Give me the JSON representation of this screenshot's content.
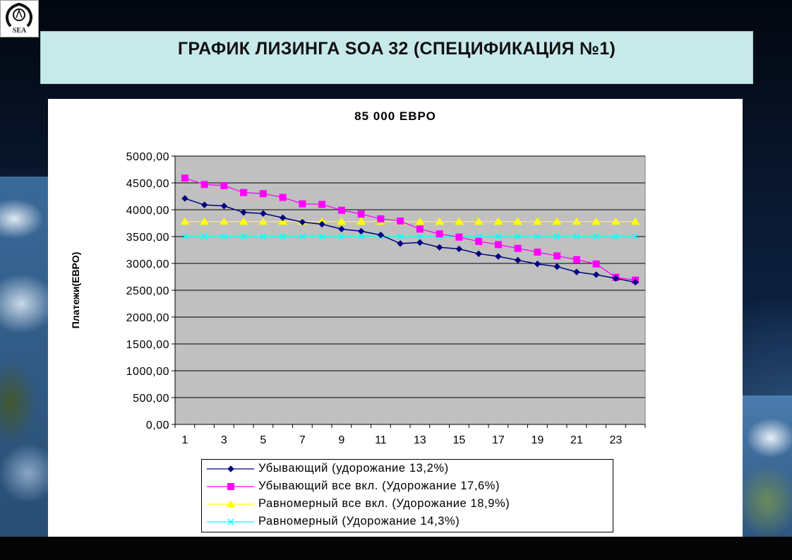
{
  "header": {
    "title": "ГРАФИК ЛИЗИНГА SOA 32 (СПЕЦИФИКАЦИЯ №1)",
    "logo_text": "SEA"
  },
  "colors": {
    "header_bg": "#c8e9e9",
    "plot_bg": "#c0c0c0",
    "series": [
      "#000080",
      "#ff00ff",
      "#ffff00",
      "#00ffff"
    ]
  },
  "chart_data": {
    "type": "line",
    "title": "85 000 ЕВРО",
    "xlabel": "",
    "ylabel": "Платежи(ЕВРО)",
    "ylim": [
      0,
      5000
    ],
    "yticks": [
      "5000,00",
      "4500,00",
      "4000,00",
      "3500,00",
      "3000,00",
      "2500,00",
      "2000,00",
      "1500,00",
      "1000,00",
      "500,00",
      "0,00"
    ],
    "xticks": [
      "1",
      "3",
      "5",
      "7",
      "9",
      "11",
      "13",
      "15",
      "17",
      "19",
      "21",
      "23"
    ],
    "x": [
      1,
      2,
      3,
      4,
      5,
      6,
      7,
      8,
      9,
      10,
      11,
      12,
      13,
      14,
      15,
      16,
      17,
      18,
      19,
      20,
      21,
      22,
      23,
      24
    ],
    "grid": true,
    "legend_position": "bottom",
    "series": [
      {
        "name": "Убывающий (удорожание 13,2%)",
        "marker": "diamond",
        "values": [
          4210,
          4090,
          4070,
          3950,
          3930,
          3850,
          3770,
          3730,
          3640,
          3600,
          3530,
          3370,
          3390,
          3300,
          3270,
          3180,
          3130,
          3060,
          2990,
          2940,
          2840,
          2790,
          2720,
          2650
        ]
      },
      {
        "name": "Убывающий все вкл. (Удорожание 17,6%)",
        "marker": "square",
        "values": [
          4590,
          4470,
          4450,
          4320,
          4300,
          4230,
          4110,
          4100,
          3990,
          3920,
          3830,
          3790,
          3640,
          3550,
          3490,
          3410,
          3350,
          3280,
          3210,
          3140,
          3070,
          2990,
          2740,
          2690
        ]
      },
      {
        "name": "Равномерный все вкл. (Удорожание 18,9%)",
        "marker": "triangle",
        "values": [
          3780,
          3780,
          3780,
          3780,
          3780,
          3780,
          3780,
          3780,
          3780,
          3780,
          3780,
          3780,
          3780,
          3780,
          3780,
          3780,
          3780,
          3780,
          3780,
          3780,
          3780,
          3780,
          3780,
          3780
        ]
      },
      {
        "name": "Равномерный  (Удорожание 14,3%)",
        "marker": "x",
        "values": [
          3500,
          3500,
          3500,
          3500,
          3500,
          3500,
          3500,
          3500,
          3500,
          3500,
          3500,
          3500,
          3500,
          3500,
          3500,
          3500,
          3500,
          3500,
          3500,
          3500,
          3500,
          3500,
          3500,
          3500
        ]
      }
    ]
  }
}
